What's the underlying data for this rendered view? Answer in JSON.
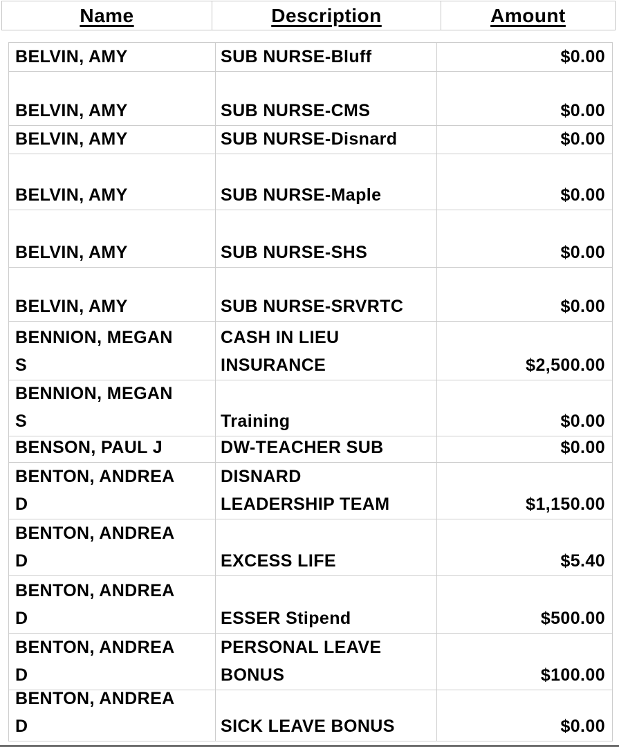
{
  "style": {
    "border_color": "#cdcdcd",
    "header_border_color": "#c6c6c6",
    "text_color": "#000000",
    "page_background": "#ffffff",
    "bottom_edge_color": "#6e6e6e"
  },
  "table": {
    "columns": [
      {
        "key": "name",
        "label": "Name"
      },
      {
        "key": "description",
        "label": "Description"
      },
      {
        "key": "amount",
        "label": "Amount"
      }
    ],
    "rows": [
      {
        "name": "BELVIN, AMY",
        "description": "SUB NURSE-Bluff",
        "amount": "$0.00",
        "height": 42
      },
      {
        "name": "BELVIN, AMY",
        "description": "SUB NURSE-CMS",
        "amount": "$0.00",
        "height": 78
      },
      {
        "name": "BELVIN, AMY",
        "description": "SUB NURSE-Disnard",
        "amount": "$0.00",
        "height": 41
      },
      {
        "name": "BELVIN, AMY",
        "description": "SUB NURSE-Maple",
        "amount": "$0.00",
        "height": 81
      },
      {
        "name": "BELVIN, AMY",
        "description": "SUB NURSE-SHS",
        "amount": "$0.00",
        "height": 83
      },
      {
        "name": "BELVIN, AMY",
        "description": "SUB NURSE-SRVRTC",
        "amount": "$0.00",
        "height": 78
      },
      {
        "name": "BENNION, MEGAN\nS",
        "description": "CASH IN LIEU\nINSURANCE",
        "amount": "$2,500.00",
        "height": 85
      },
      {
        "name": "BENNION, MEGAN\nS",
        "description": "Training",
        "amount": "$0.00",
        "height": 81
      },
      {
        "name": "BENSON, PAUL J",
        "description": "DW-TEACHER SUB",
        "amount": "$0.00",
        "height": 38
      },
      {
        "name": "BENTON, ANDREA\nD",
        "description": "DISNARD\nLEADERSHIP TEAM",
        "amount": "$1,150.00",
        "height": 82
      },
      {
        "name": "BENTON, ANDREA\nD",
        "description": "EXCESS LIFE",
        "amount": "$5.40",
        "height": 82
      },
      {
        "name": "BENTON, ANDREA\nD",
        "description": "ESSER Stipend",
        "amount": "$500.00",
        "height": 83
      },
      {
        "name": "BENTON, ANDREA\nD",
        "description": "PERSONAL LEAVE\nBONUS",
        "amount": "$100.00",
        "height": 82
      },
      {
        "name": "BENTON, ANDREA\nD",
        "description": "SICK LEAVE BONUS",
        "amount": "$0.00",
        "height": 74
      }
    ]
  }
}
